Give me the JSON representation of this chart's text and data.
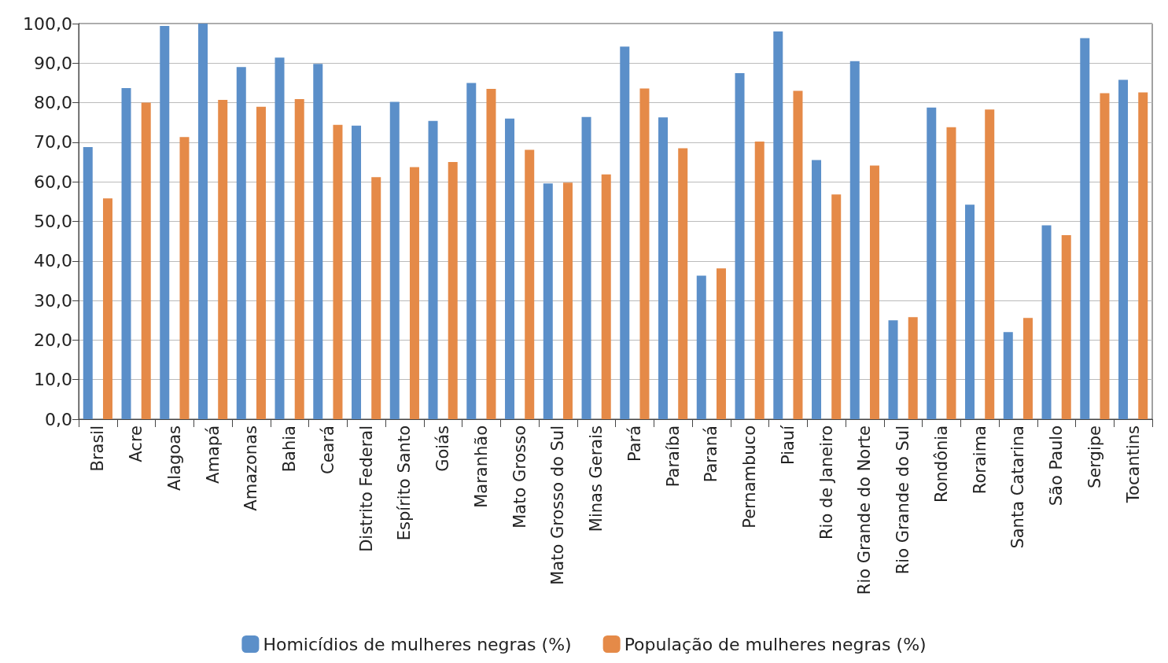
{
  "chart_data": {
    "type": "bar",
    "categories": [
      "Brasil",
      "Acre",
      "Alagoas",
      "Amapá",
      "Amazonas",
      "Bahia",
      "Ceará",
      "Distrito Federal",
      "Espírito Santo",
      "Goiás",
      "Maranhão",
      "Mato Grosso",
      "Mato Grosso do Sul",
      "Minas Gerais",
      "Pará",
      "Paraíba",
      "Paraná",
      "Pernambuco",
      "Piauí",
      "Rio de Janeiro",
      "Rio Grande do Norte",
      "Rio Grande do Sul",
      "Rondônia",
      "Roraima",
      "Santa Catarina",
      "São Paulo",
      "Sergipe",
      "Tocantins"
    ],
    "series": [
      {
        "name": "Homicídios de mulheres negras (%)",
        "color": "#5b8fc9",
        "values": [
          68.8,
          83.7,
          99.4,
          100.0,
          89.0,
          91.4,
          89.8,
          74.2,
          80.2,
          75.4,
          85.0,
          76.0,
          59.6,
          76.4,
          94.2,
          76.3,
          36.3,
          87.5,
          98.0,
          65.5,
          90.5,
          25.0,
          78.8,
          54.2,
          22.0,
          49.0,
          96.3,
          85.8
        ]
      },
      {
        "name": "População de mulheres negras (%)",
        "color": "#e58a48",
        "values": [
          55.8,
          80.0,
          71.3,
          80.7,
          79.0,
          80.9,
          74.4,
          61.2,
          63.7,
          65.0,
          83.5,
          68.1,
          59.8,
          61.9,
          83.6,
          68.5,
          38.1,
          70.2,
          83.0,
          56.8,
          64.1,
          25.8,
          73.8,
          78.3,
          25.6,
          46.5,
          82.4,
          82.6
        ]
      }
    ],
    "ylim": [
      0,
      100
    ],
    "yticks": [
      {
        "value": 0,
        "label": "0,0"
      },
      {
        "value": 10,
        "label": "10,0"
      },
      {
        "value": 20,
        "label": "20,0"
      },
      {
        "value": 30,
        "label": "30,0"
      },
      {
        "value": 40,
        "label": "40,0"
      },
      {
        "value": 50,
        "label": "50,0"
      },
      {
        "value": 60,
        "label": "60,0"
      },
      {
        "value": 70,
        "label": "70,0"
      },
      {
        "value": 80,
        "label": "80,0"
      },
      {
        "value": 90,
        "label": "90,0"
      },
      {
        "value": 100,
        "label": "100,0"
      }
    ],
    "grid": "y",
    "legend": "bottom"
  }
}
